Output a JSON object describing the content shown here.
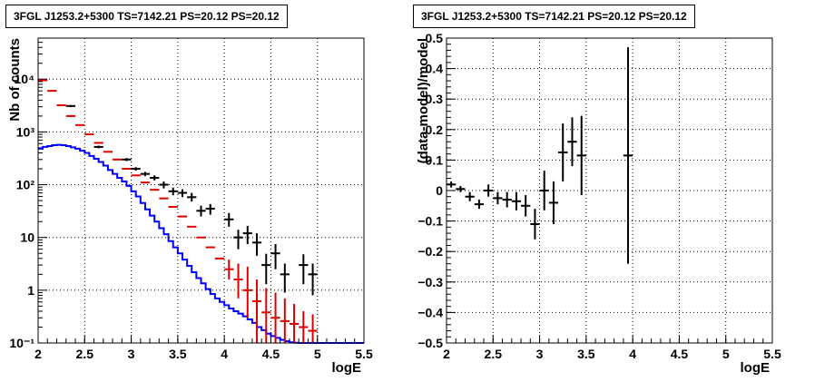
{
  "chart_data": [
    {
      "type": "line",
      "title": "3FGL J1253.2+5300 TS=7142.21 PS=20.12 PS=20.12",
      "xlabel": "logE",
      "ylabel": "Nb of counts",
      "xlim": [
        2,
        5.5
      ],
      "ylim": [
        0.1,
        60000
      ],
      "yscale": "log",
      "grid": true,
      "xticks": [
        "2",
        "2.5",
        "3",
        "3.5",
        "4",
        "4.5",
        "5",
        "5.5"
      ],
      "yticks": [
        {
          "value": 0.1,
          "label": "10⁻¹"
        },
        {
          "value": 1,
          "label": "1"
        },
        {
          "value": 10,
          "label": "10"
        },
        {
          "value": 100,
          "label": "10²"
        },
        {
          "value": 1000,
          "label": "10³"
        },
        {
          "value": 10000,
          "label": "10⁴"
        }
      ],
      "series": [
        {
          "color": "#0000ff",
          "style": "step",
          "bin_edges": [
            2.0,
            2.05,
            2.1,
            2.15,
            2.2,
            2.25,
            2.3,
            2.35,
            2.4,
            2.45,
            2.5,
            2.55,
            2.6,
            2.65,
            2.7,
            2.75,
            2.8,
            2.85,
            2.9,
            2.95,
            3.0,
            3.05,
            3.1,
            3.15,
            3.2,
            3.25,
            3.3,
            3.35,
            3.4,
            3.45,
            3.5,
            3.55,
            3.6,
            3.65,
            3.7,
            3.75,
            3.8,
            3.85,
            3.9,
            3.95,
            4.0,
            4.05,
            4.1,
            4.15,
            4.2,
            4.25,
            4.3,
            4.35,
            4.4,
            4.45,
            4.5,
            4.55,
            4.6,
            4.65,
            4.7,
            4.75,
            4.8,
            4.85,
            4.9,
            4.95,
            5.0,
            5.5
          ],
          "values": [
            480,
            520,
            540,
            560,
            570,
            560,
            540,
            510,
            480,
            440,
            400,
            350,
            310,
            270,
            230,
            190,
            160,
            135,
            115,
            95,
            75,
            60,
            45,
            34,
            26,
            20,
            15,
            11.5,
            8.5,
            6.5,
            5.0,
            3.8,
            2.9,
            2.2,
            1.7,
            1.35,
            1.05,
            0.85,
            0.7,
            0.6,
            0.52,
            0.45,
            0.4,
            0.36,
            0.32,
            0.28,
            0.24,
            0.2,
            0.175,
            0.15,
            0.135,
            0.125,
            0.115,
            0.108,
            0.103,
            0.101,
            0.1,
            0.1,
            0.1,
            0.1,
            0.1
          ]
        },
        {
          "color": "#dd0000",
          "style": "errorbars",
          "x": [
            2.05,
            2.15,
            2.25,
            2.35,
            2.45,
            2.55,
            2.65,
            2.75,
            2.85,
            2.95,
            3.05,
            3.15,
            3.25,
            3.35,
            3.45,
            3.55,
            3.65,
            3.75,
            3.85,
            3.95,
            4.05,
            4.15,
            4.25,
            4.35,
            4.45,
            4.55,
            4.65,
            4.75,
            4.85,
            4.95
          ],
          "y": [
            9500,
            6000,
            3200,
            2000,
            1350,
            900,
            620,
            420,
            300,
            200,
            150,
            110,
            80,
            55,
            38,
            25,
            16,
            10,
            6.5,
            4.0,
            2.5,
            1.6,
            1.0,
            0.62,
            0.38,
            0.3,
            0.26,
            0.23,
            0.2,
            0.17
          ],
          "ylow": [
            9500,
            6000,
            3200,
            2000,
            1350,
            900,
            620,
            420,
            300,
            200,
            150,
            110,
            80,
            55,
            38,
            25,
            16,
            10,
            6.5,
            4.0,
            1.6,
            0.7,
            0.3,
            0.1,
            0.1,
            0.1,
            0.1,
            0.1,
            0.1,
            0.1
          ],
          "yhigh": [
            9500,
            6000,
            3200,
            2000,
            1350,
            900,
            620,
            420,
            300,
            200,
            150,
            110,
            80,
            55,
            38,
            25,
            16,
            10,
            6.5,
            4.0,
            3.8,
            3.2,
            2.8,
            1.6,
            1.1,
            0.9,
            0.7,
            0.55,
            0.4,
            0.35
          ]
        },
        {
          "color": "#000000",
          "style": "errorbars",
          "x": [
            2.35,
            2.65,
            2.95,
            3.05,
            3.15,
            3.25,
            3.35,
            3.45,
            3.55,
            3.65,
            3.75,
            3.85,
            4.05,
            4.15,
            4.25,
            4.35,
            4.45,
            4.55,
            4.65,
            4.85,
            4.95
          ],
          "y": [
            3100,
            520,
            300,
            200,
            160,
            135,
            100,
            75,
            70,
            58,
            32,
            35,
            22,
            10,
            12,
            8,
            3,
            5,
            2,
            3,
            2
          ],
          "ylow": [
            2950,
            490,
            280,
            185,
            145,
            120,
            85,
            63,
            58,
            48,
            25,
            27,
            16,
            6,
            7.5,
            4.5,
            1.3,
            2.5,
            0.9,
            1.3,
            0.8
          ],
          "yhigh": [
            3250,
            550,
            320,
            215,
            175,
            150,
            115,
            88,
            82,
            70,
            40,
            43,
            29,
            14,
            16.5,
            12,
            4.9,
            7.5,
            3.2,
            4.8,
            3.2
          ]
        }
      ]
    },
    {
      "type": "scatter",
      "title": "3FGL J1253.2+5300 TS=7142.21 PS=20.12 PS=20.12",
      "xlabel": "logE",
      "ylabel": "(data-model)/model",
      "xlim": [
        2,
        5.5
      ],
      "ylim": [
        -0.5,
        0.5
      ],
      "grid": true,
      "xticks": [
        "2",
        "2.5",
        "3",
        "3.5",
        "4",
        "4.5",
        "5",
        "5.5"
      ],
      "yticks": [
        "−0.5",
        "−0.4",
        "−0.3",
        "−0.2",
        "−0.1",
        "0",
        "0.1",
        "0.2",
        "0.3",
        "0.4",
        "0.5"
      ],
      "series": [
        {
          "color": "#000000",
          "style": "errorbars",
          "x": [
            2.05,
            2.15,
            2.25,
            2.35,
            2.45,
            2.55,
            2.65,
            2.75,
            2.85,
            2.95,
            3.05,
            3.15,
            3.25,
            3.35,
            3.45,
            3.95
          ],
          "y": [
            0.02,
            0.005,
            -0.02,
            -0.045,
            0.0,
            -0.025,
            -0.03,
            -0.035,
            -0.05,
            -0.11,
            0.0,
            -0.04,
            0.125,
            0.16,
            0.115,
            0.115
          ],
          "ylow": [
            0.01,
            -0.005,
            -0.035,
            -0.06,
            -0.02,
            -0.045,
            -0.055,
            -0.065,
            -0.085,
            -0.16,
            -0.065,
            -0.11,
            0.03,
            0.08,
            -0.015,
            -0.24
          ],
          "yhigh": [
            0.03,
            0.015,
            -0.005,
            -0.03,
            0.02,
            -0.005,
            -0.005,
            -0.005,
            -0.015,
            -0.06,
            0.065,
            0.03,
            0.22,
            0.24,
            0.245,
            0.47
          ]
        }
      ]
    }
  ]
}
